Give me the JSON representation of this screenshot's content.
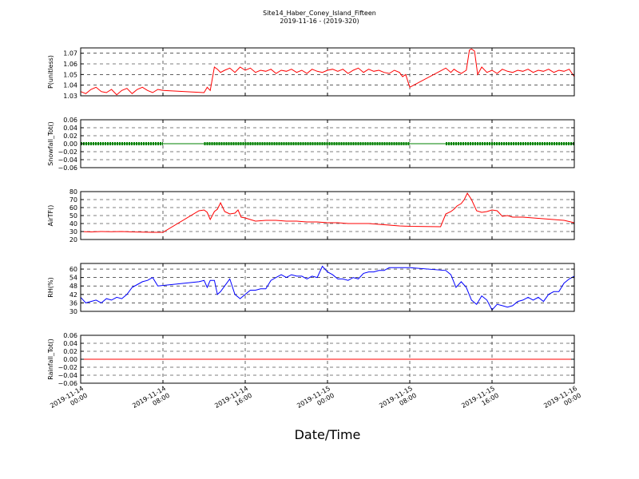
{
  "figure": {
    "title": "Site14_Haber_Coney_Island_Fifteen",
    "subtitle": "2019-11-16 - (2019-320)",
    "xlabel": "Date/Time",
    "x_ticks": [
      "2019-11-14\n00:00",
      "2019-11-14\n08:00",
      "2019-11-14\n16:00",
      "2019-11-15\n00:00",
      "2019-11-15\n08:00",
      "2019-11-15\n16:00",
      "2019-11-16\n00:00"
    ]
  },
  "chart_data": [
    {
      "type": "line",
      "ylabel": "P(unitless)",
      "ylim": [
        1.03,
        1.075
      ],
      "yticks": [
        1.03,
        1.04,
        1.05,
        1.06,
        1.07
      ],
      "ytick_labels": [
        "1.03",
        "1.04",
        "1.05",
        "1.06",
        "1.07"
      ],
      "xlim": [
        0,
        48
      ],
      "grid": true,
      "series": [
        {
          "color": "#ff0000",
          "x": [
            0,
            0.5,
            1,
            1.5,
            2,
            2.5,
            3,
            3.5,
            4,
            4.5,
            5,
            5.5,
            6,
            6.5,
            7,
            7.5,
            8,
            12,
            12.3,
            12.6,
            13,
            13.3,
            13.6,
            14,
            14.5,
            15,
            15.5,
            16,
            16.5,
            17,
            17.5,
            18,
            18.5,
            19,
            19.5,
            20,
            20.5,
            21,
            21.5,
            22,
            22.5,
            23,
            23.5,
            24,
            24.5,
            25,
            25.5,
            26,
            26.5,
            27,
            27.5,
            28,
            28.5,
            29,
            29.5,
            30,
            30.5,
            31,
            31.3,
            31.6,
            32,
            35.5,
            36,
            36.3,
            36.6,
            37,
            37.5,
            37.8,
            38,
            38.3,
            38.6,
            39,
            39.5,
            40,
            40.5,
            41,
            41.5,
            42,
            42.5,
            43,
            43.5,
            44,
            44.5,
            45,
            45.5,
            46,
            46.5,
            47,
            47.5,
            48
          ],
          "y": [
            1.034,
            1.032,
            1.036,
            1.038,
            1.034,
            1.033,
            1.036,
            1.031,
            1.035,
            1.037,
            1.032,
            1.036,
            1.038,
            1.035,
            1.033,
            1.036,
            1.035,
            1.033,
            1.038,
            1.035,
            1.057,
            1.055,
            1.052,
            1.054,
            1.056,
            1.052,
            1.057,
            1.054,
            1.056,
            1.052,
            1.054,
            1.053,
            1.055,
            1.051,
            1.054,
            1.053,
            1.055,
            1.052,
            1.054,
            1.051,
            1.055,
            1.053,
            1.052,
            1.054,
            1.055,
            1.053,
            1.055,
            1.051,
            1.054,
            1.056,
            1.052,
            1.055,
            1.053,
            1.054,
            1.052,
            1.051,
            1.054,
            1.052,
            1.048,
            1.05,
            1.038,
            1.056,
            1.052,
            1.055,
            1.053,
            1.051,
            1.054,
            1.073,
            1.074,
            1.072,
            1.05,
            1.057,
            1.052,
            1.054,
            1.051,
            1.055,
            1.053,
            1.052,
            1.054,
            1.053,
            1.055,
            1.052,
            1.054,
            1.053,
            1.055,
            1.052,
            1.054,
            1.053,
            1.055,
            1.048
          ]
        }
      ]
    },
    {
      "type": "scatter",
      "ylabel": "Snowfall_Tot()",
      "ylim": [
        -0.06,
        0.06
      ],
      "yticks": [
        -0.06,
        -0.04,
        -0.02,
        0.0,
        0.02,
        0.04,
        0.06
      ],
      "ytick_labels": [
        "−0.06",
        "−0.04",
        "−0.02",
        "0.00",
        "0.02",
        "0.04",
        "0.06"
      ],
      "xlim": [
        0,
        48
      ],
      "grid": true,
      "series": [
        {
          "color": "#008000",
          "segments": [
            [
              0,
              8
            ],
            [
              12,
              32
            ],
            [
              35.5,
              48
            ]
          ],
          "value": 0.0
        }
      ]
    },
    {
      "type": "line",
      "ylabel": "AirTF()",
      "ylim": [
        20,
        80
      ],
      "yticks": [
        20,
        30,
        40,
        50,
        60,
        70,
        80
      ],
      "ytick_labels": [
        "20",
        "30",
        "40",
        "50",
        "60",
        "70",
        "80"
      ],
      "xlim": [
        0,
        48
      ],
      "grid": true,
      "series": [
        {
          "color": "#ff0000",
          "x": [
            0,
            1,
            2,
            3,
            4,
            5,
            6,
            7,
            8,
            11.5,
            12,
            12.3,
            12.6,
            13,
            13.3,
            13.6,
            14,
            14.5,
            15,
            15.3,
            15.6,
            16,
            17,
            18,
            19,
            20,
            21,
            22,
            23,
            24,
            25,
            26,
            27,
            28,
            29,
            30,
            31,
            32,
            35,
            35.5,
            36,
            36.3,
            36.6,
            37,
            37.3,
            37.6,
            38,
            38.5,
            39,
            39.5,
            40,
            40.5,
            41,
            41.5,
            42,
            43,
            44,
            45,
            46,
            47,
            48
          ],
          "y": [
            30,
            29.5,
            30,
            29.8,
            30,
            29.5,
            29.3,
            29,
            29,
            56,
            57,
            54,
            45,
            55,
            58,
            66,
            55,
            52,
            53,
            57,
            48,
            47,
            43,
            44,
            44,
            43,
            43,
            42,
            42,
            41,
            41,
            40,
            40,
            40,
            39,
            38,
            37,
            36.5,
            36,
            52,
            55,
            58,
            62,
            65,
            70,
            78,
            70,
            56,
            54,
            55,
            57,
            56,
            49,
            50,
            48,
            48,
            47,
            46,
            45,
            44,
            41
          ]
        }
      ]
    },
    {
      "type": "line",
      "ylabel": "RH(%)",
      "ylim": [
        30,
        64
      ],
      "yticks": [
        30,
        36,
        42,
        48,
        54,
        60
      ],
      "ytick_labels": [
        "30",
        "36",
        "42",
        "48",
        "54",
        "60"
      ],
      "xlim": [
        0,
        48
      ],
      "grid": true,
      "series": [
        {
          "color": "#0000ff",
          "x": [
            0,
            0.5,
            1,
            1.5,
            2,
            2.5,
            3,
            3.5,
            4,
            4.5,
            5,
            5.5,
            6,
            6.5,
            7,
            7.5,
            11.5,
            12,
            12.3,
            12.6,
            13,
            13.3,
            13.6,
            14,
            14.5,
            15,
            15.5,
            16,
            16.5,
            17,
            17.5,
            18,
            18.5,
            19,
            19.5,
            20,
            20.5,
            21,
            21.5,
            22,
            22.5,
            23,
            23.5,
            24,
            24.5,
            25,
            25.5,
            26,
            26.5,
            27,
            27.5,
            28,
            28.5,
            29,
            29.5,
            30,
            30.5,
            31,
            31.5,
            32,
            35.5,
            36,
            36.5,
            37,
            37.5,
            38,
            38.5,
            39,
            39.5,
            40,
            40.5,
            41,
            41.5,
            42,
            42.5,
            43,
            43.5,
            44,
            44.5,
            45,
            45.5,
            46,
            46.5,
            47,
            47.5,
            48
          ],
          "y": [
            40,
            36,
            37,
            38,
            36,
            39,
            38,
            40,
            39,
            42,
            47,
            49,
            51,
            52,
            54,
            48,
            51,
            52,
            47,
            52,
            52,
            42,
            44,
            48,
            53,
            42,
            39,
            42,
            45,
            45,
            46,
            46,
            52,
            54,
            56,
            54,
            56,
            55,
            55,
            53,
            55,
            54,
            62,
            58,
            56,
            53,
            53,
            52,
            54,
            53,
            57,
            58,
            58,
            59,
            59,
            61,
            61,
            61,
            61,
            61,
            59,
            56,
            47,
            51,
            47,
            38,
            35,
            41,
            38,
            31,
            35,
            34,
            33,
            34,
            37,
            38,
            40,
            38,
            40,
            37,
            42,
            44,
            44,
            50,
            53,
            55
          ]
        }
      ]
    },
    {
      "type": "line",
      "ylabel": "Rainfall_Tot()",
      "ylim": [
        -0.06,
        0.06
      ],
      "yticks": [
        -0.06,
        -0.04,
        -0.02,
        0.0,
        0.02,
        0.04,
        0.06
      ],
      "ytick_labels": [
        "−0.06",
        "−0.04",
        "−0.02",
        "0.00",
        "0.02",
        "0.04",
        "0.06"
      ],
      "xlim": [
        0,
        48
      ],
      "grid": true,
      "series": [
        {
          "color": "#ff0000",
          "x": [
            0,
            48
          ],
          "y": [
            0,
            0
          ]
        }
      ]
    }
  ]
}
